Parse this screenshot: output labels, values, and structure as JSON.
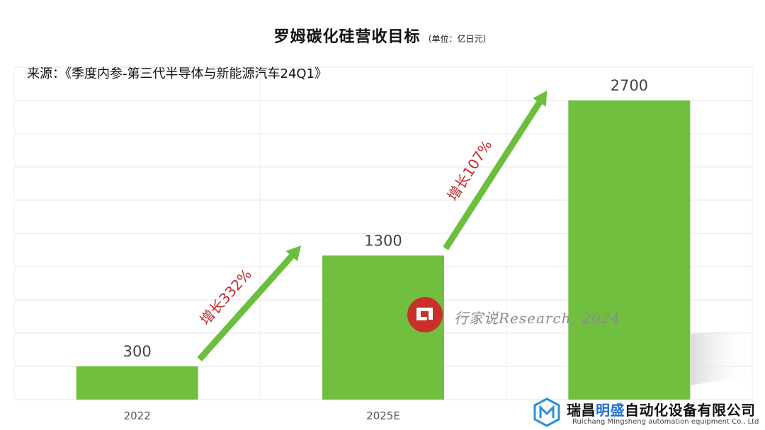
{
  "chart_data": {
    "type": "bar",
    "title": "罗姆碳化硅营收目标",
    "subtitle": "（单位：亿日元）",
    "categories": [
      "2022",
      "2025E",
      ""
    ],
    "values": [
      300,
      1300,
      2700
    ],
    "value_labels": [
      "300",
      "1300",
      "2700"
    ],
    "ylim": [
      0,
      3000
    ],
    "grid": true,
    "bar_color": "#71bf3f",
    "annotations": [
      {
        "text": "增长332%",
        "from_category": "2022",
        "to_category": "2025E"
      },
      {
        "text": "增长107%",
        "from_category": "2025E",
        "to_category": ""
      }
    ],
    "annotation_arrow_color": "#6cbf3c",
    "annotation_text_color": "#c8282d"
  },
  "source_text": "来源：《季度内参-第三代半导体与新能源汽车24Q1》",
  "watermark": {
    "text": "行家说Research, 2024",
    "logo_text": "行家说"
  },
  "brand": {
    "name_a": "瑞昌",
    "name_b": "明盛",
    "name_c": "自动化设备有限公司",
    "english": "Ruichang Mingsheng automation equipment Co., Ltd",
    "accent": "#1f6fd0",
    "logo_icon": "hexagon-m-icon"
  }
}
